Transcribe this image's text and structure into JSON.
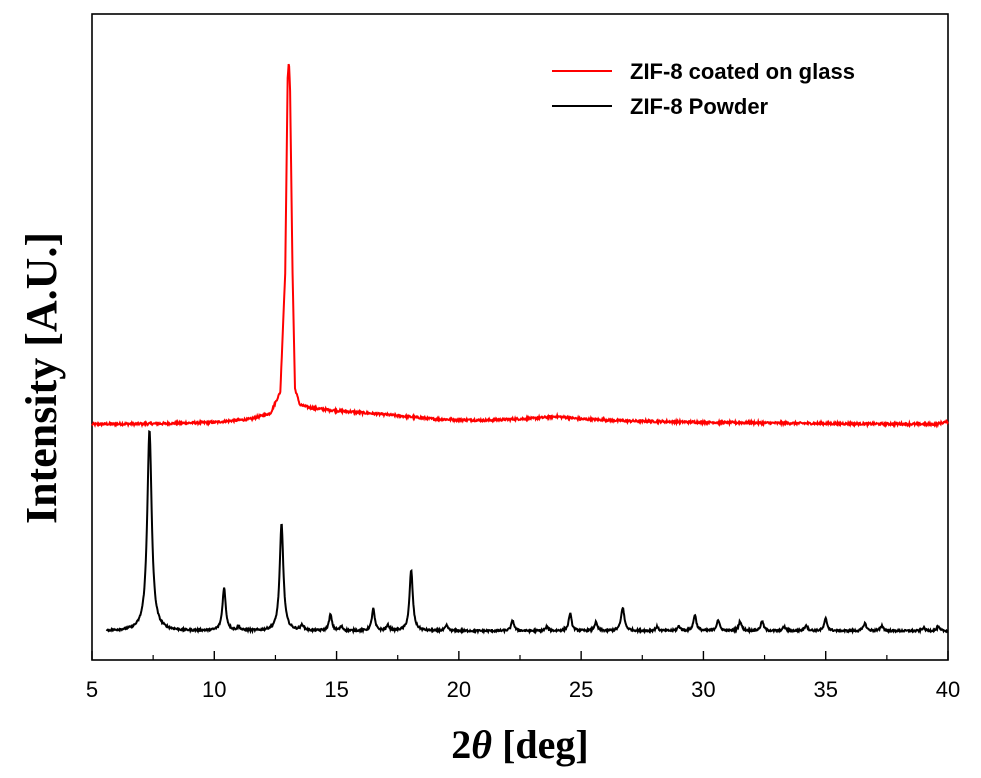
{
  "chart_data": {
    "type": "line",
    "xlabel_prefix": "2",
    "xlabel_symbol": "θ",
    "xlabel_suffix": " [deg]",
    "ylabel": "Intensity [A.U.]",
    "xlim": [
      5,
      40
    ],
    "ylim": [
      0,
      100
    ],
    "x_ticks": [
      "5",
      "10",
      "15",
      "20",
      "25",
      "30",
      "35",
      "40"
    ],
    "y_ticks_visible": false,
    "grid": false,
    "legend_position": "top-right",
    "series": [
      {
        "name": "ZIF-8 coated on glass",
        "color": "#ff0000",
        "baseline": 36.5,
        "x": [
          5.0,
          8.0,
          10.0,
          11.5,
          12.3,
          12.7,
          12.9,
          13.0,
          13.05,
          13.1,
          13.2,
          13.3,
          13.5,
          14.0,
          15.0,
          17.0,
          19.0,
          21.0,
          23.0,
          24.0,
          25.0,
          27.0,
          30.0,
          35.0,
          39.5,
          40.0
        ],
        "y": [
          36.5,
          36.6,
          36.8,
          37.3,
          38.2,
          41.5,
          60.0,
          90.0,
          93.0,
          88.0,
          60.0,
          42.0,
          39.5,
          39.0,
          38.6,
          38.0,
          37.3,
          37.1,
          37.4,
          37.7,
          37.3,
          37.0,
          36.8,
          36.6,
          36.5,
          36.9
        ]
      },
      {
        "name": "ZIF-8 Powder",
        "color": "#000000",
        "baseline": 4.5,
        "peaks": [
          {
            "x": 7.35,
            "h": 31.0,
            "w": 0.11
          },
          {
            "x": 10.4,
            "h": 6.6,
            "w": 0.08
          },
          {
            "x": 11.0,
            "h": 0.6,
            "w": 0.06
          },
          {
            "x": 12.75,
            "h": 16.5,
            "w": 0.09
          },
          {
            "x": 13.6,
            "h": 0.8,
            "w": 0.08
          },
          {
            "x": 14.75,
            "h": 2.5,
            "w": 0.07
          },
          {
            "x": 15.2,
            "h": 0.6,
            "w": 0.07
          },
          {
            "x": 16.5,
            "h": 3.4,
            "w": 0.07
          },
          {
            "x": 17.1,
            "h": 0.8,
            "w": 0.07
          },
          {
            "x": 18.05,
            "h": 9.4,
            "w": 0.08
          },
          {
            "x": 19.5,
            "h": 0.8,
            "w": 0.07
          },
          {
            "x": 22.2,
            "h": 1.6,
            "w": 0.07
          },
          {
            "x": 23.6,
            "h": 0.6,
            "w": 0.07
          },
          {
            "x": 24.55,
            "h": 2.7,
            "w": 0.07
          },
          {
            "x": 25.6,
            "h": 1.3,
            "w": 0.07
          },
          {
            "x": 26.7,
            "h": 3.6,
            "w": 0.08
          },
          {
            "x": 28.1,
            "h": 0.6,
            "w": 0.07
          },
          {
            "x": 29.0,
            "h": 0.7,
            "w": 0.07
          },
          {
            "x": 29.65,
            "h": 2.5,
            "w": 0.07
          },
          {
            "x": 30.6,
            "h": 1.7,
            "w": 0.07
          },
          {
            "x": 31.5,
            "h": 1.5,
            "w": 0.07
          },
          {
            "x": 32.4,
            "h": 1.5,
            "w": 0.07
          },
          {
            "x": 33.3,
            "h": 0.6,
            "w": 0.07
          },
          {
            "x": 34.2,
            "h": 0.9,
            "w": 0.07
          },
          {
            "x": 35.0,
            "h": 1.9,
            "w": 0.07
          },
          {
            "x": 36.6,
            "h": 1.2,
            "w": 0.07
          },
          {
            "x": 37.3,
            "h": 0.8,
            "w": 0.07
          },
          {
            "x": 39.0,
            "h": 0.5,
            "w": 0.07
          },
          {
            "x": 39.6,
            "h": 0.6,
            "w": 0.07
          }
        ]
      }
    ]
  }
}
